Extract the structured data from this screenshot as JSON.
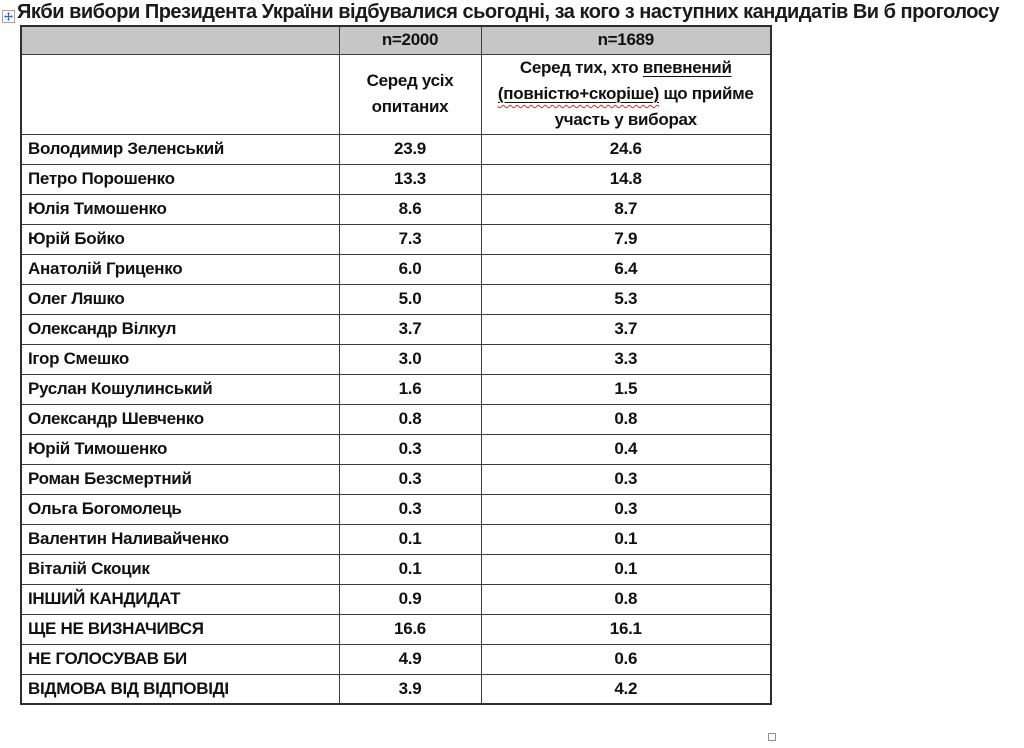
{
  "title": "Якби вибори Президента України відбувалися сьогодні, за кого з наступних кандидатів Ви б проголосу",
  "icons": {
    "move_handle": "table-move-handle-icon",
    "resize_handle": "table-resize-handle-icon"
  },
  "colors": {
    "header_bg": "#c6c6c6",
    "border": "#3c3c3c",
    "text": "#111111",
    "move_arrow_blue": "#3a66c0",
    "spellcheck_red": "#e02b20"
  },
  "table": {
    "header_row1": {
      "col1": "",
      "col2": "n=2000",
      "col3": "n=1689"
    },
    "header_row2": {
      "col2": "Серед усіх опитаних",
      "col3_prefix": "Серед тих, хто ",
      "col3_underlined": "впевнений",
      "col3_space": " ",
      "col3_paren": "(повністю+скоріше)",
      "col3_suffix": " що прийме участь у виборах"
    },
    "rows": [
      {
        "name": "Володимир Зеленський",
        "all": "23.9",
        "confident": "24.6"
      },
      {
        "name": "Петро Порошенко",
        "all": "13.3",
        "confident": "14.8"
      },
      {
        "name": "Юлія Тимошенко",
        "all": "8.6",
        "confident": "8.7"
      },
      {
        "name": "Юрій Бойко",
        "all": "7.3",
        "confident": "7.9"
      },
      {
        "name": "Анатолій Гриценко",
        "all": "6.0",
        "confident": "6.4"
      },
      {
        "name": "Олег Ляшко",
        "all": "5.0",
        "confident": "5.3"
      },
      {
        "name": "Олександр Вілкул",
        "all": "3.7",
        "confident": "3.7"
      },
      {
        "name": "Ігор Смешко",
        "all": "3.0",
        "confident": "3.3"
      },
      {
        "name": "Руслан Кошулинський",
        "all": "1.6",
        "confident": "1.5"
      },
      {
        "name": "Олександр Шевченко",
        "all": "0.8",
        "confident": "0.8"
      },
      {
        "name": "Юрій Тимошенко",
        "all": "0.3",
        "confident": "0.4"
      },
      {
        "name": "Роман Безсмертний",
        "all": "0.3",
        "confident": "0.3"
      },
      {
        "name": "Ольга Богомолець",
        "all": "0.3",
        "confident": "0.3"
      },
      {
        "name": "Валентин Наливайченко",
        "all": "0.1",
        "confident": "0.1"
      },
      {
        "name": "Віталій Скоцик",
        "all": "0.1",
        "confident": "0.1"
      },
      {
        "name": "ІНШИЙ КАНДИДАТ",
        "all": "0.9",
        "confident": "0.8"
      },
      {
        "name": "ЩЕ НЕ ВИЗНАЧИВСЯ",
        "all": "16.6",
        "confident": "16.1"
      },
      {
        "name": "НЕ ГОЛОСУВАВ БИ",
        "all": "4.9",
        "confident": "0.6"
      },
      {
        "name": "ВІДМОВА ВІД ВІДПОВІДІ",
        "all": "3.9",
        "confident": "4.2"
      }
    ]
  }
}
